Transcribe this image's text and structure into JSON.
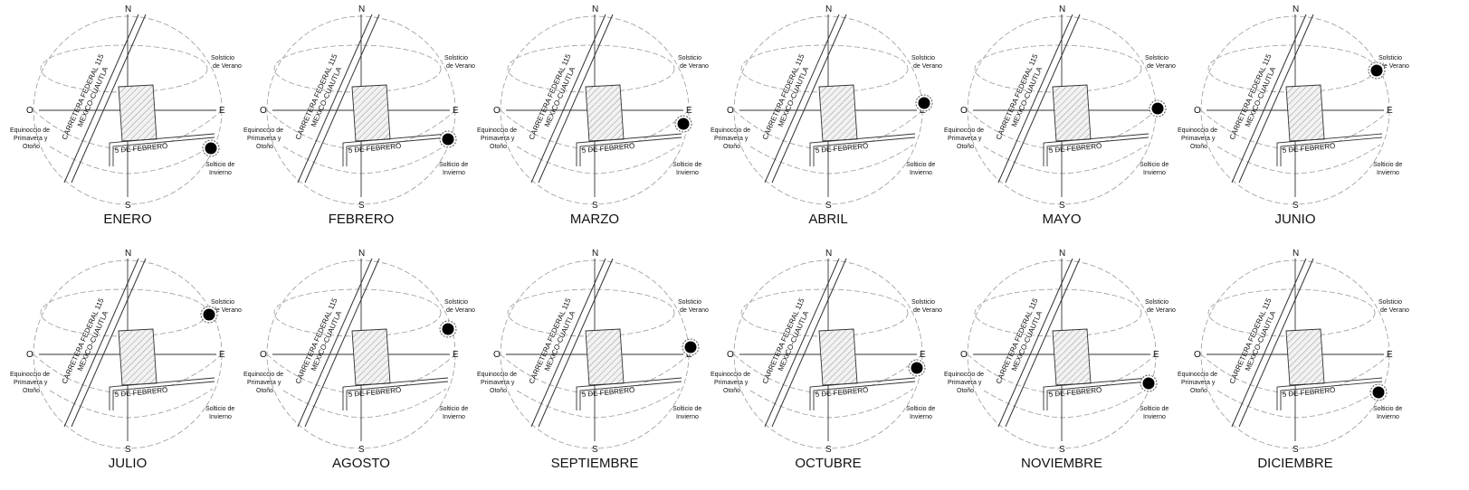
{
  "labels": {
    "north": "N",
    "south": "S",
    "east": "E",
    "west": "O",
    "summer_solstice": [
      "Solsticio",
      "de Verano"
    ],
    "equinox": [
      "Equinoccio de",
      "Primavera y",
      "Otoño"
    ],
    "winter_solstice": [
      "Solticio de",
      "Invierno"
    ],
    "road": [
      "CARRETERA FEDERAL 115",
      "MEXICO-CUAUTLA"
    ],
    "street": "5 DE FEBRERO"
  },
  "months": [
    {
      "name": "ENERO",
      "sun": "winter"
    },
    {
      "name": "FEBRERO",
      "sun": "winter-high"
    },
    {
      "name": "MARZO",
      "sun": "equinox-low"
    },
    {
      "name": "ABRIL",
      "sun": "equinox-high"
    },
    {
      "name": "MAYO",
      "sun": "equinox"
    },
    {
      "name": "JUNIO",
      "sun": "summer"
    },
    {
      "name": "JULIO",
      "sun": "summer"
    },
    {
      "name": "AGOSTO",
      "sun": "summer-low"
    },
    {
      "name": "SEPTIEMBRE",
      "sun": "equinox-high"
    },
    {
      "name": "OCTUBRE",
      "sun": "equinox-low"
    },
    {
      "name": "NOVIEMBRE",
      "sun": "winter-high"
    },
    {
      "name": "DICIEMBRE",
      "sun": "winter"
    }
  ],
  "colors": {
    "ink": "#111111",
    "line": "#333333",
    "dash": "#9a9a9a",
    "sun": "#000000"
  }
}
